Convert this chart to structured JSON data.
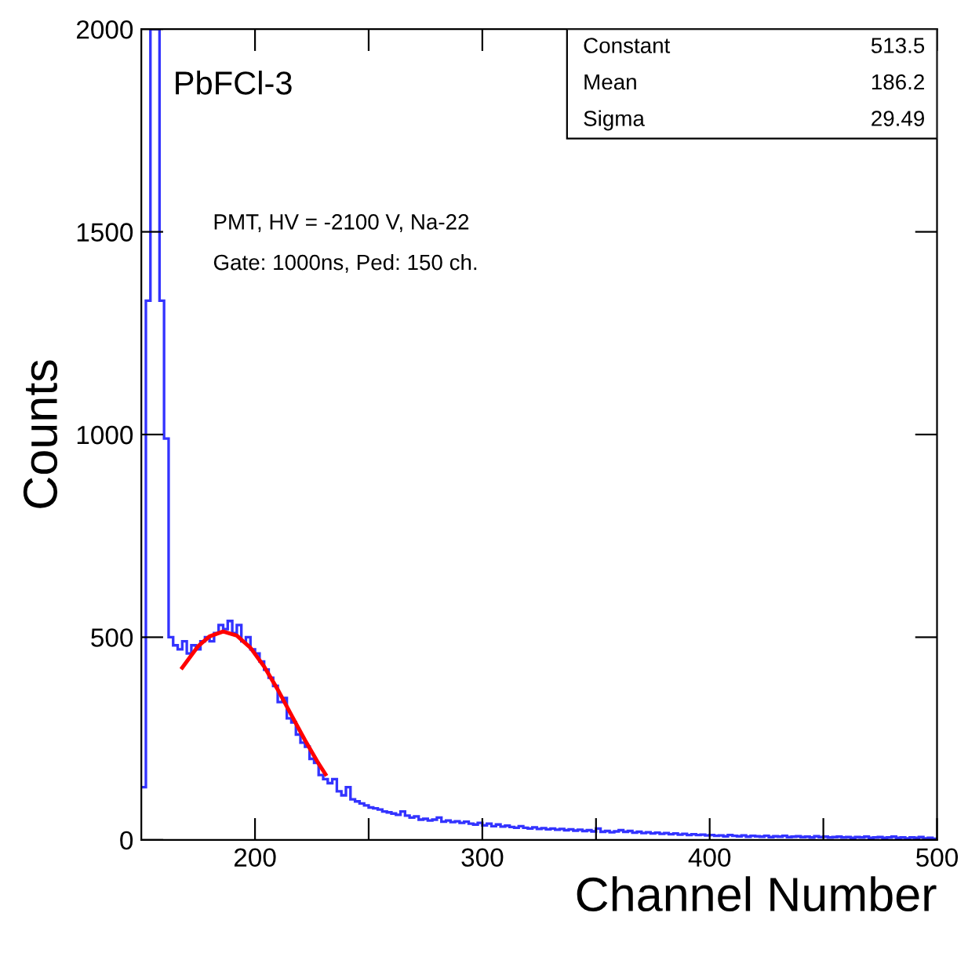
{
  "chart_data": {
    "type": "histogram",
    "xlabel": "Channel Number",
    "ylabel": "Counts",
    "annotations": [
      "PbFCl-3",
      "PMT, HV = -2100 V, Na-22",
      "Gate: 1000ns, Ped: 150 ch.",
      "Constant",
      "513.5",
      "Mean",
      "186.2",
      "Sigma",
      "29.49"
    ],
    "bins": [
      150,
      152,
      154,
      156,
      158,
      160,
      162,
      164,
      166,
      168,
      170,
      172,
      174,
      176,
      178,
      180,
      182,
      184,
      186,
      188,
      190,
      192,
      194,
      196,
      198,
      200,
      202,
      204,
      206,
      208,
      210,
      212,
      214,
      216,
      218,
      220,
      222,
      224,
      226,
      228,
      230,
      232,
      234,
      236,
      238,
      240,
      242,
      244,
      246,
      248,
      250,
      252,
      254,
      256,
      258,
      260,
      262,
      264,
      266,
      268,
      270,
      272,
      274,
      276,
      278,
      280,
      282,
      284,
      286,
      288,
      290,
      292,
      294,
      296,
      298,
      300,
      302,
      304,
      306,
      308,
      310,
      312,
      314,
      316,
      318,
      320,
      322,
      324,
      326,
      328,
      330,
      332,
      334,
      336,
      338,
      340,
      342,
      344,
      346,
      348,
      350,
      352,
      354,
      356,
      358,
      360,
      362,
      364,
      366,
      368,
      370,
      372,
      374,
      376,
      378,
      380,
      382,
      384,
      386,
      388,
      390,
      392,
      394,
      396,
      398,
      400,
      402,
      404,
      406,
      408,
      410,
      412,
      414,
      416,
      418,
      420,
      422,
      424,
      426,
      428,
      430,
      432,
      434,
      436,
      438,
      440,
      442,
      444,
      446,
      448,
      450,
      452,
      454,
      456,
      458,
      460,
      462,
      464,
      466,
      468,
      470,
      472,
      474,
      476,
      478,
      480,
      482,
      484,
      486,
      488,
      490,
      492,
      494,
      496,
      498,
      500
    ],
    "series": [
      {
        "type": "histogram",
        "color": "#3333ff",
        "values": [
          130,
          1330,
          2000,
          2000,
          1330,
          990,
          500,
          480,
          470,
          490,
          460,
          480,
          470,
          490,
          500,
          490,
          510,
          530,
          520,
          540,
          510,
          530,
          490,
          500,
          470,
          460,
          440,
          420,
          400,
          380,
          340,
          350,
          300,
          290,
          260,
          240,
          230,
          200,
          190,
          160,
          150,
          140,
          150,
          120,
          110,
          130,
          100,
          95,
          90,
          85,
          80,
          78,
          75,
          70,
          68,
          65,
          62,
          70,
          60,
          55,
          58,
          50,
          52,
          48,
          50,
          55,
          45,
          48,
          44,
          46,
          42,
          45,
          40,
          38,
          42,
          36,
          40,
          34,
          38,
          33,
          35,
          32,
          30,
          34,
          30,
          28,
          31,
          27,
          29,
          26,
          28,
          25,
          27,
          24,
          26,
          23,
          25,
          22,
          24,
          21,
          28,
          20,
          22,
          19,
          21,
          24,
          20,
          22,
          18,
          20,
          17,
          19,
          16,
          18,
          15,
          17,
          14,
          16,
          13,
          15,
          12,
          14,
          12,
          13,
          11,
          12,
          10,
          11,
          9,
          12,
          10,
          9,
          11,
          8,
          10,
          9,
          8,
          10,
          7,
          9,
          8,
          10,
          7,
          8,
          9,
          7,
          8,
          6,
          9,
          7,
          8,
          6,
          7,
          8,
          6,
          7,
          5,
          7,
          6,
          8,
          5,
          6,
          7,
          5,
          6,
          8,
          5,
          6,
          4,
          6,
          5,
          7,
          4,
          5,
          3
        ]
      },
      {
        "type": "line",
        "color": "#ff0000",
        "x": [
          168,
          175,
          180,
          186,
          192,
          198,
          204,
          210,
          216,
          222,
          228,
          231
        ],
        "values": [
          425,
          478,
          502,
          514,
          504,
          474,
          428,
          371,
          308,
          246,
          188,
          162
        ]
      }
    ],
    "xlim": [
      150,
      500
    ],
    "ylim": [
      0,
      2000
    ],
    "xticks": [
      200,
      {
        "value": 250,
        "label": null
      },
      300,
      {
        "value": 350,
        "label": null
      },
      400,
      {
        "value": 450,
        "label": null
      },
      500
    ],
    "yticks": [
      0,
      500,
      1000,
      1500,
      2000
    ],
    "grid": false
  }
}
